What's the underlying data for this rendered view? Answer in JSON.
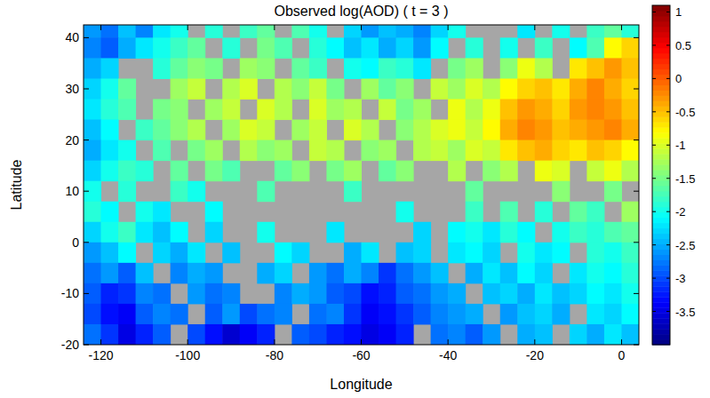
{
  "chart_data": {
    "type": "heatmap",
    "title": "Observed log(AOD) ( t = 3 )",
    "x_label": "Longitude",
    "y_label": "Latitude",
    "x": [
      -122,
      -118,
      -114,
      -110,
      -106,
      -102,
      -98,
      -94,
      -90,
      -86,
      -82,
      -78,
      -74,
      -70,
      -66,
      -62,
      -58,
      -54,
      -50,
      -46,
      -42,
      -38,
      -34,
      -30,
      -26,
      -22,
      -18,
      -14,
      -10,
      -6,
      -2,
      2
    ],
    "y": [
      42,
      38,
      34,
      30,
      26,
      22,
      18,
      14,
      10,
      6,
      2,
      -2,
      -6,
      -10,
      -14,
      -18
    ],
    "values": [
      [
        -2.6,
        -2.8,
        -2.4,
        -2.7,
        -2.2,
        -2.0,
        null,
        -1.9,
        null,
        -1.8,
        -1.6,
        null,
        -1.7,
        -2.0,
        null,
        -2.3,
        -2.6,
        -2.4,
        -2.5,
        -2.7,
        -2.3,
        -2.0,
        null,
        null,
        null,
        -2.2,
        null,
        -2.0,
        null,
        -1.8,
        -1.6,
        -1.9
      ],
      [
        -2.7,
        -2.9,
        -2.5,
        -2.2,
        -2.0,
        -1.8,
        -1.6,
        null,
        -1.9,
        null,
        -1.5,
        -1.7,
        null,
        -1.9,
        -2.1,
        -2.4,
        -2.2,
        -2.5,
        -2.3,
        -2.6,
        -2.1,
        null,
        -1.9,
        null,
        -2.0,
        null,
        -1.8,
        null,
        -2.1,
        -1.7,
        -0.8,
        -0.6
      ],
      [
        -2.5,
        -2.3,
        null,
        null,
        -1.9,
        -1.6,
        -1.4,
        -1.5,
        null,
        -1.3,
        -1.4,
        null,
        -1.6,
        -1.8,
        null,
        -2.0,
        -2.1,
        -1.8,
        -1.9,
        -2.2,
        null,
        -1.5,
        -1.3,
        null,
        -1.4,
        -0.9,
        -1.2,
        null,
        -0.7,
        -0.5,
        -0.3,
        -0.5
      ],
      [
        -2.3,
        -2.0,
        -1.6,
        null,
        null,
        -1.3,
        -1.1,
        null,
        -1.2,
        -1.0,
        null,
        -1.2,
        -1.4,
        -1.1,
        -1.5,
        null,
        -1.3,
        -1.6,
        -1.4,
        null,
        -1.1,
        -1.3,
        -1.0,
        -1.2,
        -0.8,
        -0.6,
        -0.5,
        -0.7,
        -0.4,
        -0.2,
        -0.4,
        -0.6
      ],
      [
        -2.2,
        -1.9,
        -1.7,
        null,
        -1.5,
        -1.4,
        null,
        -1.3,
        -1.1,
        null,
        -1.0,
        -1.2,
        null,
        -1.0,
        -1.3,
        -1.2,
        null,
        -1.1,
        -1.5,
        -1.3,
        null,
        -0.9,
        -1.2,
        -0.9,
        -0.5,
        -0.3,
        -0.4,
        -0.6,
        -0.3,
        -0.2,
        -0.3,
        -0.5
      ],
      [
        -2.4,
        -2.1,
        null,
        -1.8,
        -1.6,
        -1.4,
        -1.2,
        null,
        -1.3,
        -1.0,
        -1.1,
        null,
        -1.3,
        -1.1,
        null,
        -1.0,
        -1.2,
        null,
        -1.4,
        -1.2,
        -1.0,
        -0.9,
        -1.1,
        -0.8,
        -0.4,
        -0.2,
        -0.3,
        -0.5,
        -0.4,
        -0.3,
        -0.2,
        -0.4
      ],
      [
        -2.5,
        -2.2,
        -2.0,
        null,
        -1.7,
        null,
        -1.5,
        -1.3,
        null,
        -1.2,
        -1.4,
        -1.3,
        null,
        -1.1,
        -1.2,
        null,
        -1.4,
        -1.3,
        null,
        -1.2,
        -1.1,
        -1.3,
        -1.0,
        -1.1,
        -0.7,
        -0.5,
        -0.4,
        -0.6,
        -0.7,
        -0.5,
        -0.6,
        -0.8
      ],
      [
        -2.3,
        -2.0,
        -1.8,
        -1.9,
        null,
        -1.6,
        null,
        -1.5,
        -1.7,
        null,
        null,
        -1.6,
        -1.4,
        null,
        -1.5,
        -1.3,
        null,
        -1.6,
        -1.4,
        null,
        null,
        -1.2,
        null,
        -1.4,
        -1.2,
        null,
        -0.9,
        -1.0,
        null,
        -1.1,
        -0.9,
        -1.2
      ],
      [
        -2.0,
        null,
        -1.9,
        null,
        null,
        -1.8,
        -2.0,
        null,
        null,
        null,
        -1.7,
        null,
        null,
        null,
        null,
        -1.8,
        null,
        null,
        null,
        null,
        null,
        null,
        -1.6,
        null,
        null,
        null,
        null,
        -1.4,
        null,
        null,
        -1.5,
        null
      ],
      [
        -1.9,
        -2.1,
        null,
        -2.0,
        -2.2,
        null,
        null,
        -2.1,
        null,
        null,
        null,
        null,
        null,
        null,
        null,
        null,
        null,
        null,
        -2.0,
        null,
        null,
        null,
        -1.8,
        null,
        -1.7,
        null,
        -1.9,
        null,
        -1.6,
        -1.8,
        null,
        -1.3
      ],
      [
        -2.3,
        -2.0,
        -1.8,
        -2.2,
        -2.4,
        -2.1,
        null,
        -2.3,
        null,
        null,
        -2.0,
        null,
        null,
        null,
        -2.2,
        null,
        null,
        null,
        null,
        -2.3,
        null,
        -2.1,
        -2.0,
        -2.2,
        -1.9,
        -2.1,
        null,
        -2.0,
        -1.8,
        -1.9,
        -1.7,
        -1.6
      ],
      [
        -2.6,
        -2.4,
        -2.1,
        null,
        -2.3,
        -2.5,
        -2.2,
        null,
        -2.4,
        null,
        null,
        -2.1,
        -2.3,
        null,
        null,
        -2.5,
        -2.2,
        null,
        -2.4,
        -2.3,
        null,
        -2.2,
        -2.1,
        -2.3,
        null,
        -2.0,
        -2.2,
        -2.1,
        null,
        -1.9,
        -2.0,
        -1.8
      ],
      [
        -2.8,
        -2.6,
        -2.9,
        -2.4,
        null,
        -2.7,
        -2.5,
        -2.6,
        null,
        null,
        -2.5,
        -2.3,
        null,
        -2.6,
        -2.8,
        -2.5,
        -2.7,
        -3.1,
        -2.8,
        -2.6,
        -2.4,
        null,
        -2.5,
        -2.2,
        -2.4,
        -2.1,
        -2.3,
        null,
        -2.2,
        -2.0,
        -2.1,
        -1.9
      ],
      [
        -2.9,
        -3.2,
        -3.1,
        -2.7,
        -2.8,
        null,
        -2.6,
        -2.8,
        -2.7,
        null,
        null,
        -2.7,
        -2.5,
        -2.6,
        -2.9,
        -3.0,
        -3.3,
        -3.2,
        -2.9,
        -2.8,
        -2.6,
        -2.5,
        null,
        -2.4,
        -2.3,
        -2.5,
        -2.2,
        -2.4,
        -2.3,
        -2.1,
        -2.2,
        -2.0
      ],
      [
        -3.0,
        -3.3,
        -3.4,
        -2.9,
        -2.7,
        -2.8,
        null,
        -2.9,
        -2.6,
        -3.0,
        -2.8,
        -2.7,
        null,
        -2.8,
        -2.7,
        -3.1,
        -3.4,
        -3.3,
        -3.1,
        -2.9,
        -2.7,
        -2.6,
        -2.5,
        null,
        -2.6,
        -2.4,
        -2.3,
        -2.5,
        null,
        -2.2,
        -2.3,
        -2.1
      ],
      [
        -2.8,
        -3.1,
        -3.5,
        -3.2,
        -2.9,
        null,
        -3.0,
        -3.3,
        -3.6,
        -3.4,
        -3.2,
        null,
        -2.9,
        -3.0,
        -3.2,
        -3.3,
        -3.5,
        -3.4,
        -3.2,
        null,
        -2.8,
        -2.7,
        -2.9,
        -2.6,
        null,
        -2.5,
        -2.4,
        null,
        -2.3,
        -2.5,
        -2.2,
        -2.4
      ]
    ],
    "xlim": [
      -124,
      4
    ],
    "ylim": [
      -20,
      42.5
    ],
    "xticks": [
      -120,
      -100,
      -80,
      -60,
      -40,
      -20,
      0
    ],
    "yticks": [
      -20,
      -10,
      0,
      10,
      20,
      30,
      40
    ],
    "colorbar_lim": [
      -4,
      1.1
    ],
    "colorbar_ticks": [
      -3.5,
      -3,
      -2.5,
      -2,
      -1.5,
      -1,
      -0.5,
      0,
      0.5,
      1
    ]
  }
}
